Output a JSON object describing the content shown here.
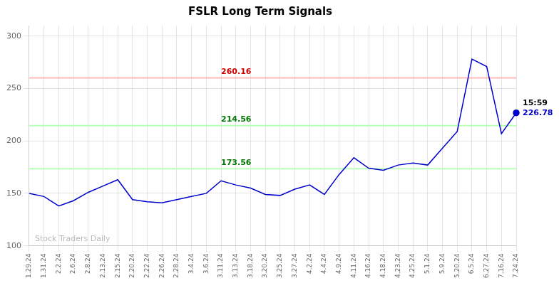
{
  "chart_data": {
    "type": "line",
    "title": "FSLR Long Term Signals",
    "categories": [
      "1.29.24",
      "1.31.24",
      "2.2.24",
      "2.6.24",
      "2.8.24",
      "2.13.24",
      "2.15.24",
      "2.20.24",
      "2.22.24",
      "2.26.24",
      "2.28.24",
      "3.4.24",
      "3.6.24",
      "3.11.24",
      "3.13.24",
      "3.18.24",
      "3.20.24",
      "3.25.24",
      "3.27.24",
      "4.2.24",
      "4.4.24",
      "4.9.24",
      "4.11.24",
      "4.16.24",
      "4.18.24",
      "4.23.24",
      "4.25.24",
      "5.1.24",
      "5.9.24",
      "5.20.24",
      "6.5.24",
      "6.27.24",
      "7.16.24",
      "7.24.24"
    ],
    "values": [
      150,
      147,
      138,
      143,
      151,
      157,
      163,
      144,
      142,
      141,
      144,
      147,
      150,
      162,
      158,
      155,
      149,
      148,
      154,
      158,
      149,
      168,
      184,
      174,
      172,
      177,
      179,
      177,
      193,
      209,
      278,
      271,
      207,
      226.78
    ],
    "color": "#0000cc",
    "hlines": [
      {
        "value": 260.16,
        "label": "260.16",
        "color": "#ffbbbb",
        "label_color": "#cc0000"
      },
      {
        "value": 214.56,
        "label": "214.56",
        "color": "#bbffbb",
        "label_color": "#007700"
      },
      {
        "value": 173.56,
        "label": "173.56",
        "color": "#bbffbb",
        "label_color": "#007700"
      }
    ],
    "annotations": [
      {
        "text": "15:59",
        "color": "#000000"
      },
      {
        "text": "226.78",
        "color": "#0000cc"
      }
    ],
    "watermark": {
      "text": "Stock Traders Daily",
      "color": "#bbbbbb"
    },
    "ylim": [
      100,
      310
    ],
    "yticks": [
      100,
      150,
      200,
      250,
      300
    ],
    "grid": true
  }
}
